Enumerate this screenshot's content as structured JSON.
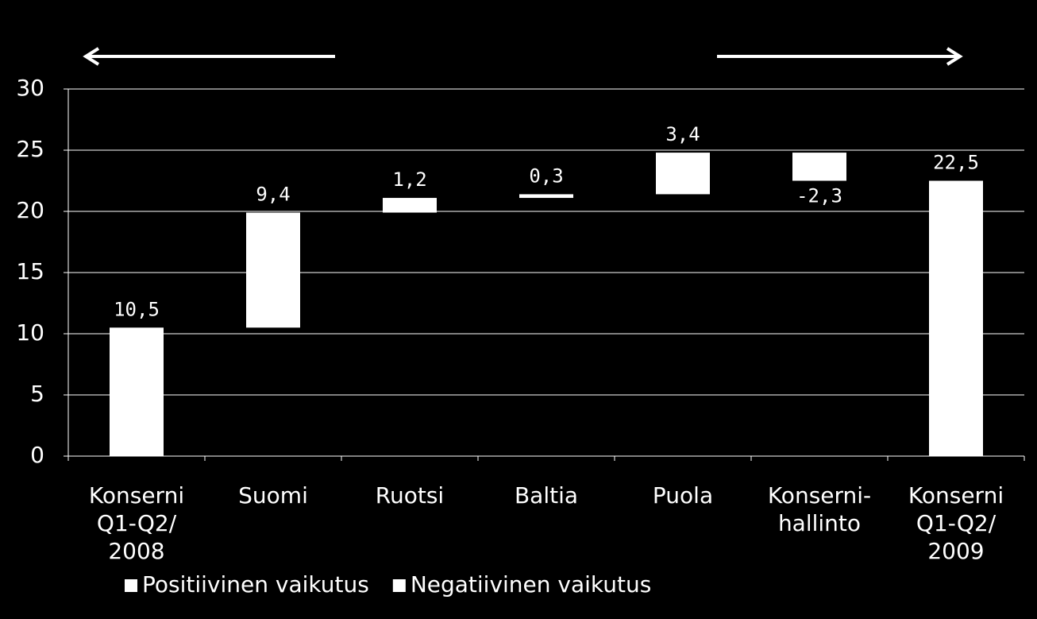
{
  "chart_data": {
    "type": "waterfall",
    "categories": [
      [
        "Konserni",
        "Q1-Q2/",
        "2008"
      ],
      [
        "Suomi"
      ],
      [
        "Ruotsi"
      ],
      [
        "Baltia"
      ],
      [
        "Puola"
      ],
      [
        "Konserni-",
        "hallinto"
      ],
      [
        "Konserni",
        "Q1-Q2/",
        "2009"
      ]
    ],
    "values": [
      10.5,
      9.4,
      1.2,
      0.3,
      3.4,
      -2.3,
      22.5
    ],
    "value_labels": [
      "10,5",
      "9,4",
      "1,2",
      "0,3",
      "3,4",
      "-2,3",
      "22,5"
    ],
    "measure": [
      "absolute",
      "relative",
      "relative",
      "relative",
      "relative",
      "relative",
      "absolute"
    ],
    "color": "#ffffff",
    "ylim": [
      0,
      30
    ],
    "yticks": [
      0,
      5,
      10,
      15,
      20,
      25,
      30
    ],
    "grid": true,
    "legend": [
      {
        "name": "Positiivinen vaikutus",
        "color": "#ffffff"
      },
      {
        "name": "Negatiivinen vaikutus",
        "color": "#ffffff"
      }
    ]
  }
}
